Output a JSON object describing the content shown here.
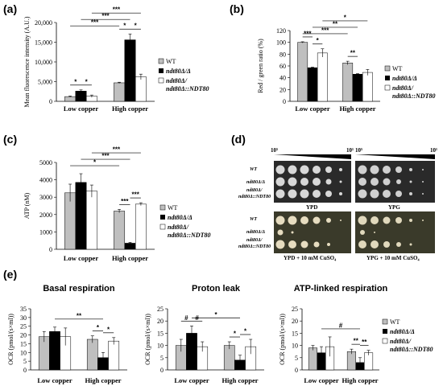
{
  "panels": {
    "a": "(a)",
    "b": "(b)",
    "c": "(c)",
    "d": "(d)",
    "e": "(e)"
  },
  "legend3": {
    "wt": "WT",
    "mut": "ndt80Δ/Δ",
    "comp1": "ndt80Δ/",
    "comp2": "ndt80Δ::NDT80"
  },
  "legend_e": {
    "wt": "WT",
    "mut": "ndt80Δ/Δ",
    "comp1": "ndt80Δ/",
    "comp2": "ndt80Δ::NDT80"
  },
  "colors": {
    "wt": "#bfbfbf",
    "mut": "#000000",
    "comp": "#ffffff"
  },
  "spot": {
    "conc_left_hi": "10⁵",
    "conc_left_lo": "10¹",
    "conc_right_hi": "10⁵",
    "conc_right_lo": "10¹",
    "rows_top": [
      "WT",
      "ndt80Δ/Δ",
      "ndt80Δ/",
      "ndt80Δ::NDT80"
    ],
    "rows_bottom": [
      "WT",
      "ndt80Δ/Δ",
      "ndt80Δ/",
      "ndt80Δ::NDT80"
    ],
    "cap_ypd": "YPD",
    "cap_ypg": "YPG",
    "cap_ypd_cu": "YPD + 10 mM CuSO₄",
    "cap_ypg_cu": "YPG + 10 mM CuSO₄"
  },
  "chart_data": [
    {
      "id": "a",
      "type": "bar",
      "ylabel": "Mean fluorescence intensity (A.U.)",
      "categories": [
        "Low copper",
        "High copper"
      ],
      "ylim": [
        0,
        20000
      ],
      "yticks": [
        "0",
        "5,000",
        "10,000",
        "15,000",
        "20,000"
      ],
      "series": [
        {
          "name": "WT",
          "values": [
            1200,
            4700
          ],
          "err": [
            150,
            150
          ]
        },
        {
          "name": "ndt80Δ/Δ",
          "values": [
            2600,
            15600
          ],
          "err": [
            300,
            1500
          ]
        },
        {
          "name": "ndt80Δ/ ndt80Δ::NDT80",
          "values": [
            1300,
            6200
          ],
          "err": [
            300,
            700
          ]
        }
      ],
      "sig": [
        {
          "label": "*",
          "from": [
            0,
            0
          ],
          "to": [
            0,
            1
          ]
        },
        {
          "label": "*",
          "from": [
            0,
            1
          ],
          "to": [
            0,
            2
          ]
        },
        {
          "label": "*",
          "from": [
            1,
            0
          ],
          "to": [
            1,
            1
          ]
        },
        {
          "label": "*",
          "from": [
            1,
            1
          ],
          "to": [
            1,
            2
          ]
        },
        {
          "label": "***",
          "from": [
            0,
            0
          ],
          "to": [
            1,
            0
          ]
        },
        {
          "label": "***",
          "from": [
            0,
            1
          ],
          "to": [
            1,
            1
          ]
        },
        {
          "label": "***",
          "from": [
            0,
            2
          ],
          "to": [
            1,
            2
          ]
        }
      ]
    },
    {
      "id": "b",
      "type": "bar",
      "ylabel": "Red / green ratio (%)",
      "categories": [
        "Low copper",
        "High copper"
      ],
      "ylim": [
        0,
        120
      ],
      "yticks": [
        "0",
        "20",
        "40",
        "60",
        "80",
        "100",
        "120"
      ],
      "series": [
        {
          "name": "WT",
          "values": [
            100,
            65
          ],
          "err": [
            1,
            3
          ]
        },
        {
          "name": "ndt80Δ/Δ",
          "values": [
            57,
            46
          ],
          "err": [
            1,
            1
          ]
        },
        {
          "name": "ndt80Δ/ ndt80Δ::NDT80",
          "values": [
            82,
            49
          ],
          "err": [
            7,
            5
          ]
        }
      ],
      "sig": [
        {
          "label": "***",
          "from": [
            0,
            0
          ],
          "to": [
            0,
            1
          ]
        },
        {
          "label": "*",
          "from": [
            0,
            1
          ],
          "to": [
            0,
            2
          ]
        },
        {
          "label": "**",
          "from": [
            1,
            0
          ],
          "to": [
            1,
            1
          ]
        },
        {
          "label": "***",
          "from": [
            0,
            0
          ],
          "to": [
            1,
            0
          ]
        },
        {
          "label": "**",
          "from": [
            0,
            1
          ],
          "to": [
            1,
            1
          ]
        },
        {
          "label": "*",
          "from": [
            0,
            2
          ],
          "to": [
            1,
            2
          ]
        }
      ]
    },
    {
      "id": "c",
      "type": "bar",
      "ylabel": "ATP (nM)",
      "categories": [
        "Low copper",
        "High copper"
      ],
      "ylim": [
        0,
        5000
      ],
      "yticks": [
        "0",
        "1000",
        "2000",
        "3000",
        "4000",
        "5000"
      ],
      "series": [
        {
          "name": "WT",
          "values": [
            3250,
            2200
          ],
          "err": [
            500,
            100
          ]
        },
        {
          "name": "ndt80Δ/Δ",
          "values": [
            3850,
            350
          ],
          "err": [
            500,
            50
          ]
        },
        {
          "name": "ndt80Δ/ ndt80Δ::NDT80",
          "values": [
            3350,
            2600
          ],
          "err": [
            350,
            80
          ]
        }
      ],
      "sig": [
        {
          "label": "***",
          "from": [
            1,
            0
          ],
          "to": [
            1,
            1
          ]
        },
        {
          "label": "***",
          "from": [
            1,
            1
          ],
          "to": [
            1,
            2
          ]
        },
        {
          "label": "*",
          "from": [
            0,
            0
          ],
          "to": [
            1,
            0
          ]
        },
        {
          "label": "***",
          "from": [
            0,
            1
          ],
          "to": [
            1,
            1
          ]
        },
        {
          "label": "***",
          "from": [
            0,
            2
          ],
          "to": [
            1,
            2
          ]
        }
      ]
    },
    {
      "id": "e1",
      "type": "bar",
      "title": "Basal respiration",
      "ylabel": "OCR (pmol/(s×ml))",
      "categories": [
        "Low copper",
        "High copper"
      ],
      "ylim": [
        0,
        35
      ],
      "yticks": [
        "0",
        "5",
        "10",
        "15",
        "20",
        "25",
        "30",
        "35"
      ],
      "series": [
        {
          "name": "WT",
          "values": [
            19,
            17.5
          ],
          "err": [
            3,
            2
          ]
        },
        {
          "name": "ndt80Δ/Δ",
          "values": [
            22,
            7
          ],
          "err": [
            2.5,
            3
          ]
        },
        {
          "name": "ndt80Δ/ ndt80Δ::NDT80",
          "values": [
            19,
            16.5
          ],
          "err": [
            5,
            2
          ]
        }
      ],
      "sig": [
        {
          "label": "*",
          "from": [
            1,
            0
          ],
          "to": [
            1,
            1
          ]
        },
        {
          "label": "*",
          "from": [
            1,
            1
          ],
          "to": [
            1,
            2
          ]
        },
        {
          "label": "**",
          "from": [
            0,
            1
          ],
          "to": [
            1,
            1
          ]
        }
      ]
    },
    {
      "id": "e2",
      "type": "bar",
      "title": "Proton leak",
      "ylabel": "OCR (pmol/(s×ml))",
      "categories": [
        "Low copper",
        "High copper"
      ],
      "ylim": [
        0,
        25
      ],
      "yticks": [
        "0",
        "5",
        "10",
        "15",
        "20",
        "25"
      ],
      "series": [
        {
          "name": "WT",
          "values": [
            10,
            10
          ],
          "err": [
            2.5,
            1.5
          ]
        },
        {
          "name": "ndt80Δ/Δ",
          "values": [
            15,
            4
          ],
          "err": [
            3,
            2
          ]
        },
        {
          "name": "ndt80Δ/ ndt80Δ::NDT80",
          "values": [
            9.5,
            9.5
          ],
          "err": [
            2,
            3
          ]
        }
      ],
      "sig": [
        {
          "label": "#",
          "from": [
            0,
            0
          ],
          "to": [
            0,
            1
          ]
        },
        {
          "label": "#",
          "from": [
            0,
            1
          ],
          "to": [
            0,
            2
          ]
        },
        {
          "label": "*",
          "from": [
            1,
            0
          ],
          "to": [
            1,
            1
          ]
        },
        {
          "label": "*",
          "from": [
            1,
            1
          ],
          "to": [
            1,
            2
          ]
        },
        {
          "label": "*",
          "from": [
            0,
            1
          ],
          "to": [
            1,
            1
          ]
        }
      ]
    },
    {
      "id": "e3",
      "type": "bar",
      "title": "ATP-linked respiration",
      "ylabel": "OCR (pmol/(s×ml))",
      "categories": [
        "Low copper",
        "High copper"
      ],
      "ylim": [
        0,
        25
      ],
      "yticks": [
        "0",
        "5",
        "10",
        "15",
        "20",
        "25"
      ],
      "series": [
        {
          "name": "WT",
          "values": [
            9,
            7.5
          ],
          "err": [
            1,
            1
          ]
        },
        {
          "name": "ndt80Δ/Δ",
          "values": [
            7,
            3
          ],
          "err": [
            2.5,
            2
          ]
        },
        {
          "name": "ndt80Δ/ ndt80Δ::NDT80",
          "values": [
            9.5,
            7
          ],
          "err": [
            4,
            1
          ]
        }
      ],
      "sig": [
        {
          "label": "**",
          "from": [
            1,
            0
          ],
          "to": [
            1,
            1
          ]
        },
        {
          "label": "**",
          "from": [
            1,
            1
          ],
          "to": [
            1,
            2
          ]
        },
        {
          "label": "#",
          "from": [
            0,
            1
          ],
          "to": [
            1,
            1
          ]
        }
      ]
    }
  ]
}
